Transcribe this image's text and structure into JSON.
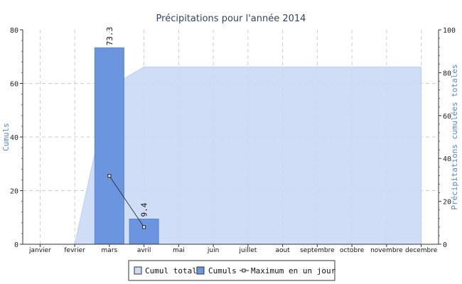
{
  "chart_data": {
    "type": "bar",
    "title": "Précipitations pour l'année 2014",
    "categories": [
      "janvier",
      "fevrier",
      "mars",
      "avril",
      "mai",
      "juin",
      "juillet",
      "aout",
      "septembre",
      "octobre",
      "novembre",
      "decembre"
    ],
    "y_left": {
      "label": "Cumuls",
      "range": [
        0,
        80
      ],
      "ticks": [
        "0",
        "20",
        "40",
        "60",
        "80"
      ]
    },
    "y_right": {
      "label": "Précipitations cumulées totales",
      "range": [
        0,
        100
      ],
      "ticks": [
        "0",
        "20",
        "40",
        "60",
        "80",
        "100"
      ]
    },
    "grid": true,
    "legend_position": "bottom",
    "series": [
      {
        "name": "Cumul total",
        "kind": "area",
        "axis": "right",
        "color": "#ccdaf6",
        "values": [
          0,
          0,
          73.3,
          82.7,
          82.7,
          82.7,
          82.7,
          82.7,
          82.7,
          82.7,
          82.7,
          82.7
        ]
      },
      {
        "name": "Cumuls",
        "kind": "bar",
        "axis": "left",
        "color": "#6b95de",
        "values": [
          0,
          0,
          73.3,
          9.4,
          0,
          0,
          0,
          0,
          0,
          0,
          0,
          0
        ],
        "data_labels": {
          "mars": "73.3",
          "avril": "9.4"
        }
      },
      {
        "name": "Maximum en un jour",
        "kind": "line",
        "axis": "left",
        "color": "#222222",
        "points": [
          {
            "x": "mars",
            "y": 25.5
          },
          {
            "x": "avril",
            "y": 6.4
          }
        ]
      }
    ]
  }
}
